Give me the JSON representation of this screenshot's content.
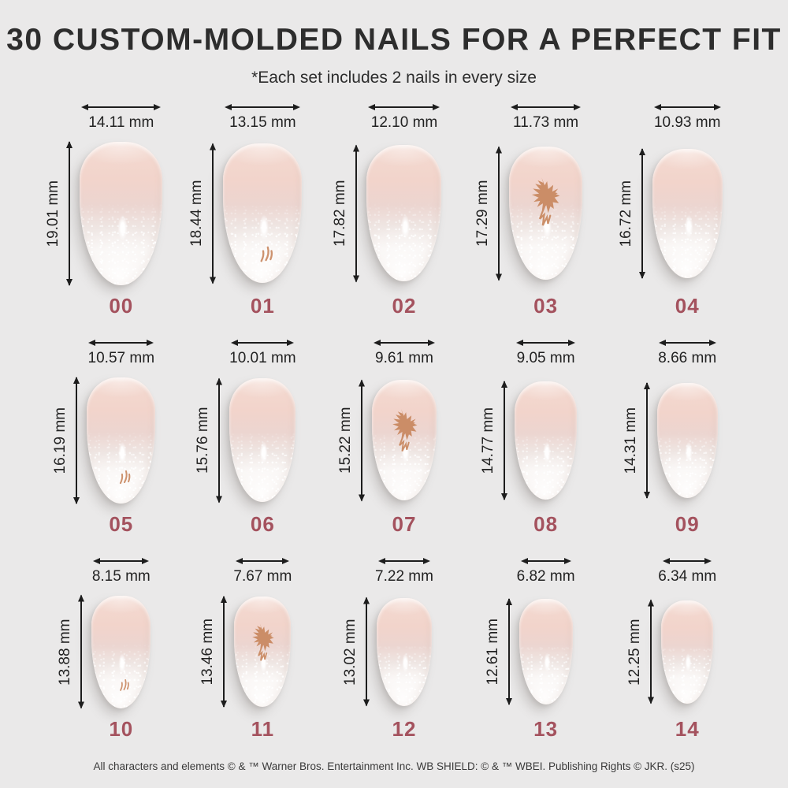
{
  "header": {
    "title": "30 CUSTOM-MOLDED NAILS FOR A PERFECT FIT",
    "subtitle": "*Each set includes 2 nails in every size"
  },
  "colors": {
    "background": "#EAE9E9",
    "title_text": "#2D2D2D",
    "measurement_text": "#222222",
    "arrow": "#1D1D1D",
    "size_number": "#A4525E",
    "nail_pink": "#F2D4CB",
    "nail_shimmer_tip": "#F8F4F2",
    "glitter_rose_gold": "#C8875F"
  },
  "unit": "mm",
  "sizes": [
    {
      "id": "00",
      "width": "14.11 mm",
      "length": "19.01 mm",
      "design": "plain"
    },
    {
      "id": "01",
      "width": "13.15 mm",
      "length": "18.44 mm",
      "design": "accent"
    },
    {
      "id": "02",
      "width": "12.10 mm",
      "length": "17.82 mm",
      "design": "plain"
    },
    {
      "id": "03",
      "width": "11.73 mm",
      "length": "17.29 mm",
      "design": "eagle"
    },
    {
      "id": "04",
      "width": "10.93 mm",
      "length": "16.72 mm",
      "design": "plain"
    },
    {
      "id": "05",
      "width": "10.57 mm",
      "length": "16.19 mm",
      "design": "accent"
    },
    {
      "id": "06",
      "width": "10.01 mm",
      "length": "15.76 mm",
      "design": "plain"
    },
    {
      "id": "07",
      "width": "9.61 mm",
      "length": "15.22 mm",
      "design": "eagle"
    },
    {
      "id": "08",
      "width": "9.05 mm",
      "length": "14.77 mm",
      "design": "plain"
    },
    {
      "id": "09",
      "width": "8.66 mm",
      "length": "14.31 mm",
      "design": "plain"
    },
    {
      "id": "10",
      "width": "8.15 mm",
      "length": "13.88 mm",
      "design": "accent"
    },
    {
      "id": "11",
      "width": "7.67 mm",
      "length": "13.46 mm",
      "design": "eagle"
    },
    {
      "id": "12",
      "width": "7.22 mm",
      "length": "13.02 mm",
      "design": "plain"
    },
    {
      "id": "13",
      "width": "6.82 mm",
      "length": "12.61 mm",
      "design": "plain"
    },
    {
      "id": "14",
      "width": "6.34 mm",
      "length": "12.25 mm",
      "design": "plain"
    }
  ],
  "footer": {
    "legal": "All characters and elements © & ™ Warner Bros. Entertainment Inc. WB SHIELD: © & ™ WBEI. Publishing Rights © JKR. (s25)"
  }
}
